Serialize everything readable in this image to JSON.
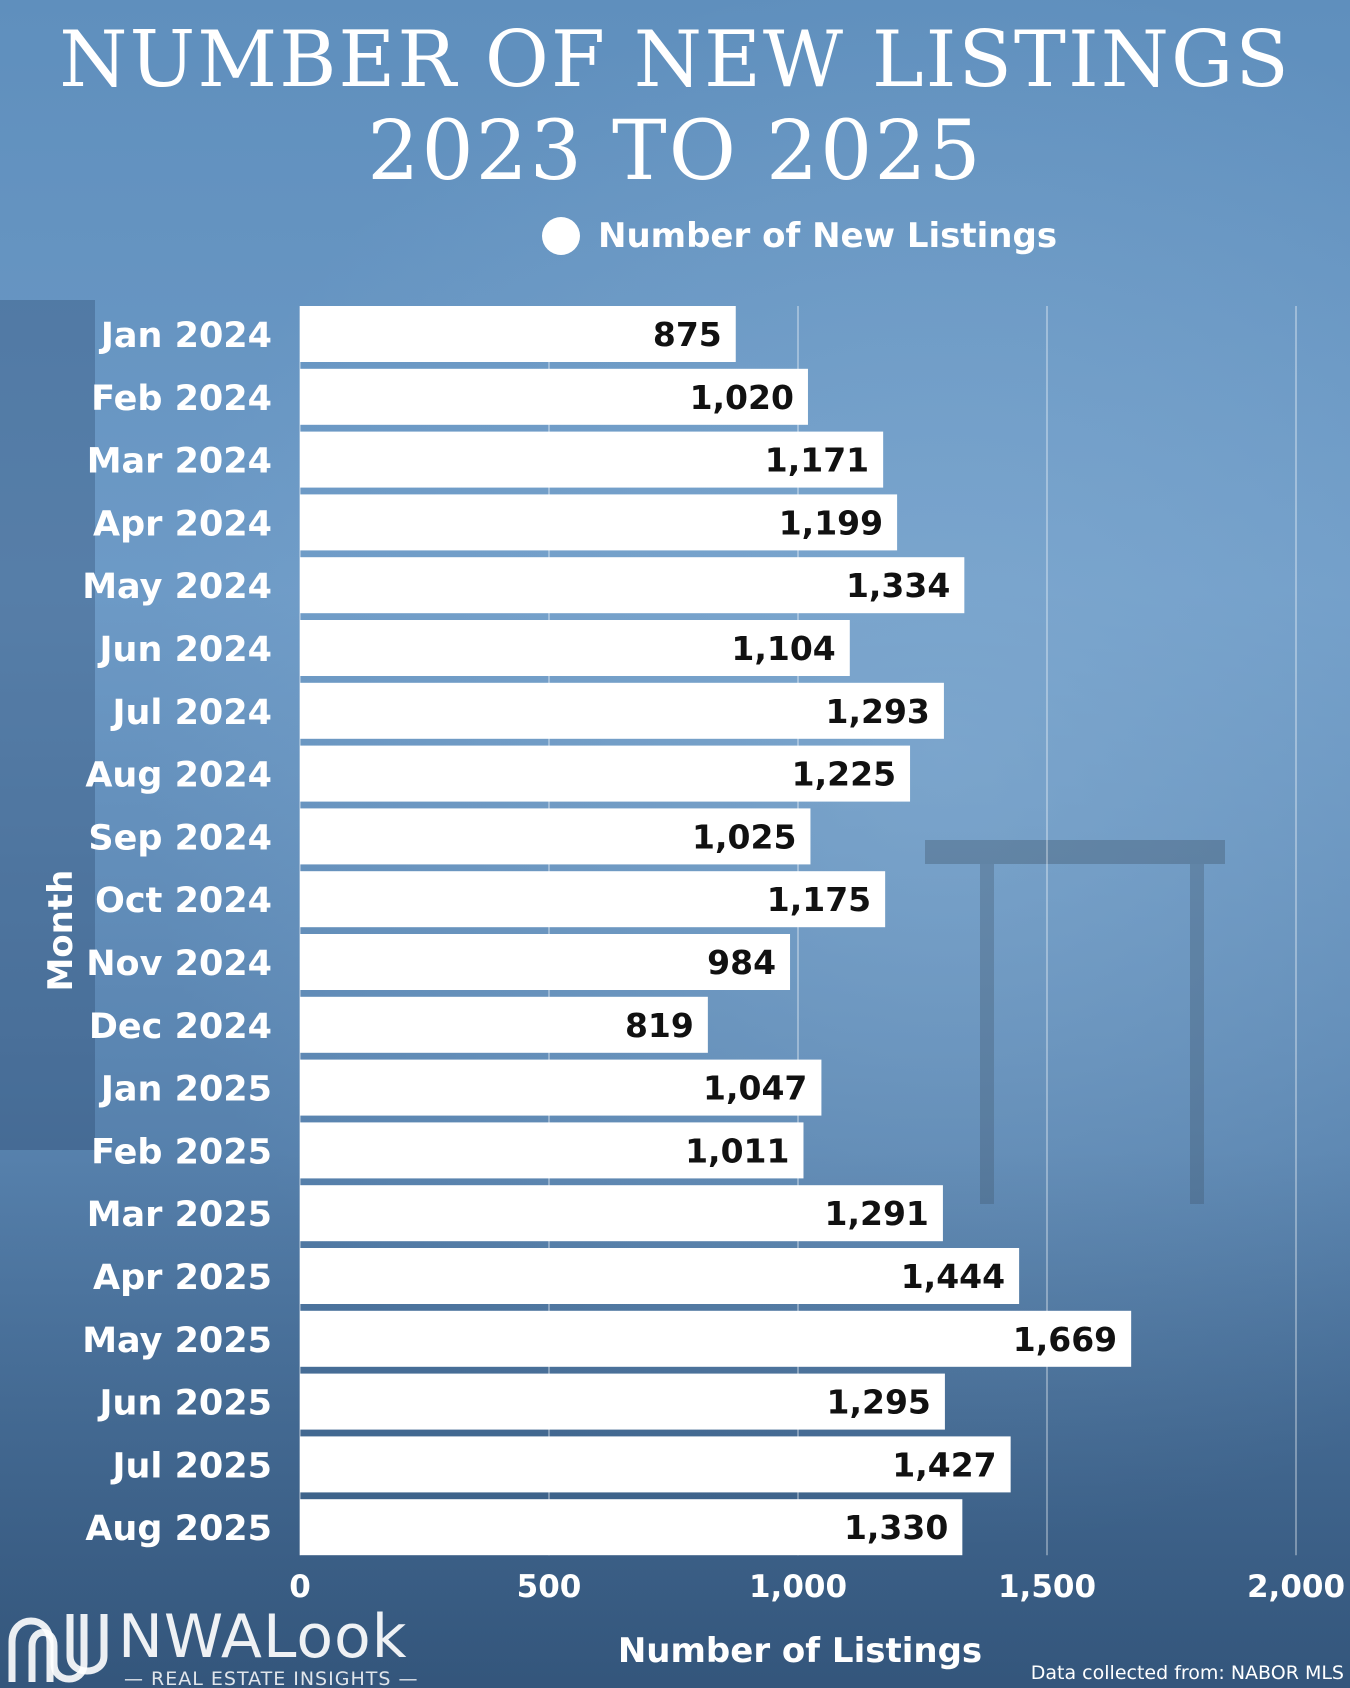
{
  "title": {
    "line1": "NUMBER OF NEW LISTINGS",
    "line2": "2023 TO 2025"
  },
  "legend": {
    "label": "Number of New Listings"
  },
  "colors": {
    "bar": "#ffffff",
    "value_text": "#111111",
    "gridline": "#ffffff"
  },
  "chart_data": {
    "type": "bar",
    "orientation": "horizontal",
    "title": "NUMBER OF NEW LISTINGS 2023 TO 2025",
    "xlabel": "Number of Listings",
    "ylabel": "Month",
    "xlim": [
      0,
      2000
    ],
    "xticks": [
      0,
      500,
      1000,
      1500,
      2000
    ],
    "xtick_labels": [
      "0",
      "500",
      "1,000",
      "1,500",
      "2,000"
    ],
    "grid": true,
    "legend_position": "top",
    "categories": [
      "Jan 2024",
      "Feb 2024",
      "Mar 2024",
      "Apr 2024",
      "May 2024",
      "Jun 2024",
      "Jul 2024",
      "Aug 2024",
      "Sep 2024",
      "Oct 2024",
      "Nov 2024",
      "Dec 2024",
      "Jan 2025",
      "Feb 2025",
      "Mar 2025",
      "Apr 2025",
      "May 2025",
      "Jun 2025",
      "Jul 2025",
      "Aug 2025"
    ],
    "series": [
      {
        "name": "Number of New Listings",
        "values": [
          875,
          1020,
          1171,
          1199,
          1334,
          1104,
          1293,
          1225,
          1025,
          1175,
          984,
          819,
          1047,
          1011,
          1291,
          1444,
          1669,
          1295,
          1427,
          1330
        ],
        "value_labels": [
          "875",
          "1,020",
          "1,171",
          "1,199",
          "1,334",
          "1,104",
          "1,293",
          "1,225",
          "1,025",
          "1,175",
          "984",
          "819",
          "1,047",
          "1,011",
          "1,291",
          "1,444",
          "1,669",
          "1,295",
          "1,427",
          "1,330"
        ]
      }
    ]
  },
  "branding": {
    "logo_text": "NWALook",
    "logo_subtext": "REAL ESTATE INSIGHTS",
    "logo_icon": "nwa-wave-logo-icon"
  },
  "source": "Data collected from: NABOR MLS"
}
